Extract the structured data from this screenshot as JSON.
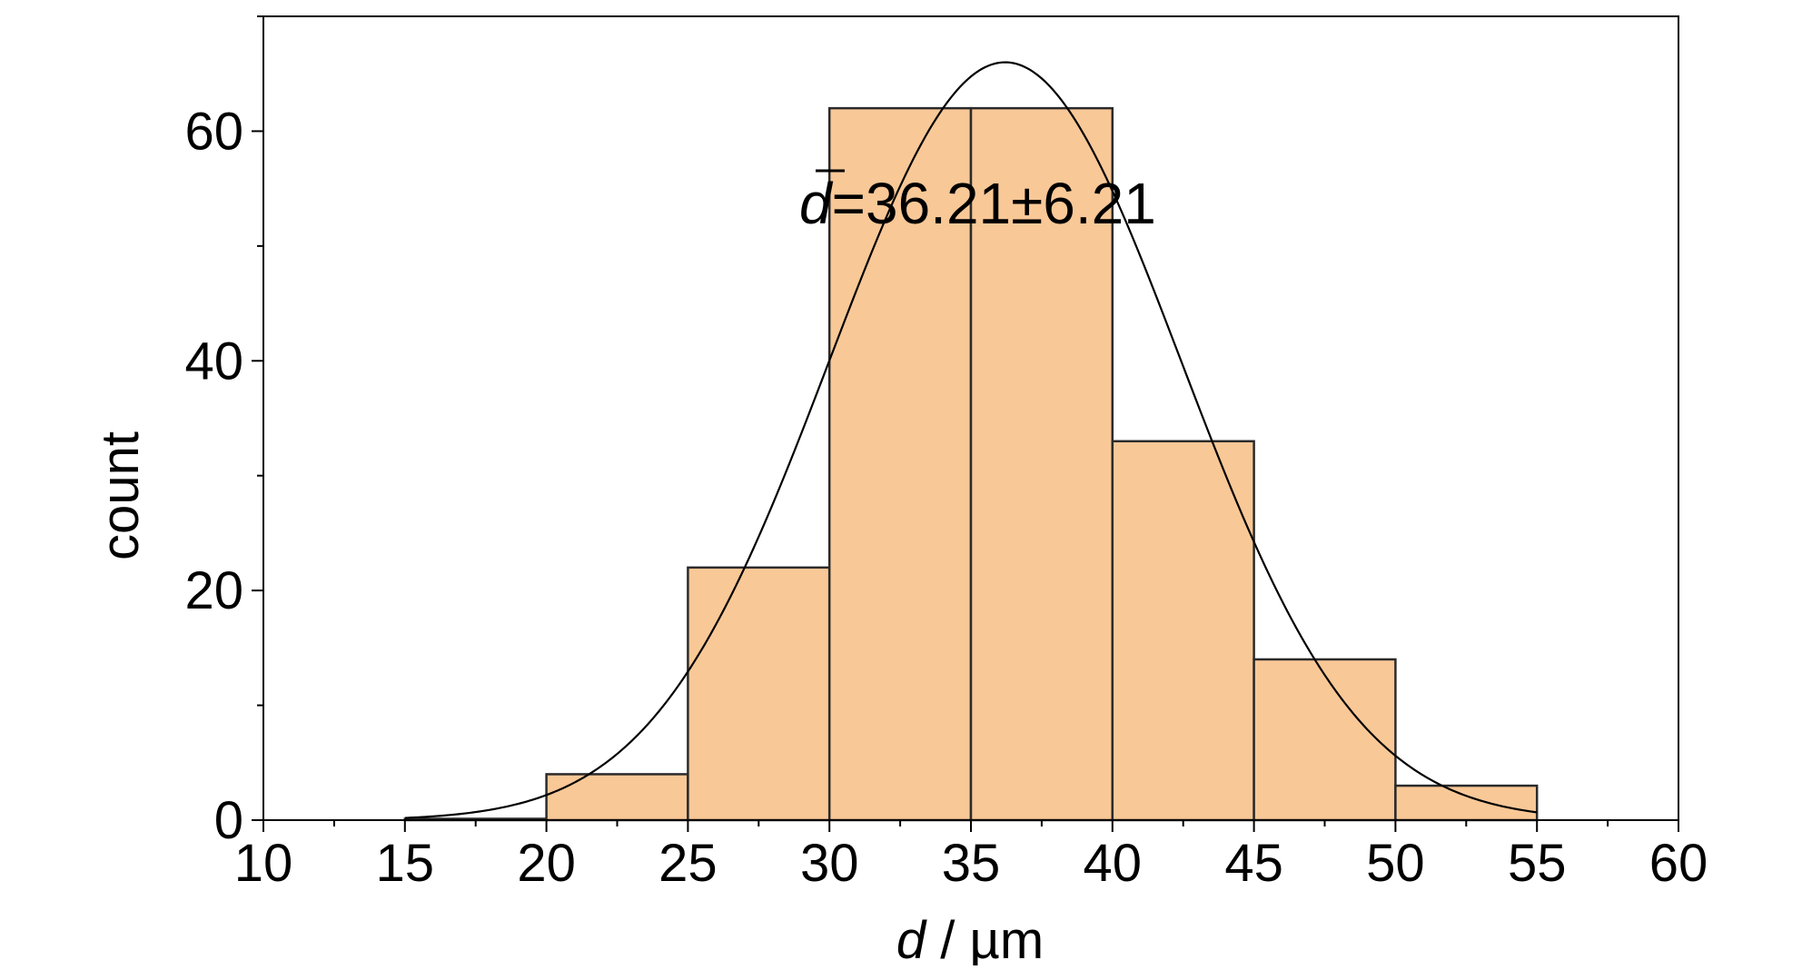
{
  "chart_data": {
    "type": "bar",
    "subtype": "histogram",
    "title": "",
    "xlabel_var": "d",
    "xlabel_unit": " / µm",
    "ylabel": "count",
    "xlim": [
      10,
      60
    ],
    "ylim": [
      0,
      70
    ],
    "x_ticks": [
      10,
      15,
      20,
      25,
      30,
      35,
      40,
      45,
      50,
      55,
      60
    ],
    "y_ticks": [
      0,
      20,
      40,
      60
    ],
    "bins": [
      {
        "start": 15,
        "end": 20,
        "value": 0
      },
      {
        "start": 20,
        "end": 25,
        "value": 4
      },
      {
        "start": 25,
        "end": 30,
        "value": 22
      },
      {
        "start": 30,
        "end": 35,
        "value": 62
      },
      {
        "start": 35,
        "end": 40,
        "value": 62
      },
      {
        "start": 40,
        "end": 45,
        "value": 33
      },
      {
        "start": 45,
        "end": 50,
        "value": 14
      },
      {
        "start": 50,
        "end": 55,
        "value": 3
      }
    ],
    "fit": {
      "type": "normal",
      "mean": 36.21,
      "sd": 6.21,
      "peak": 66
    },
    "annotation": {
      "var": "d",
      "text": "=36.21±6.21"
    },
    "grid": false,
    "legend": "none",
    "colors": {
      "bar_fill": "#f9c897",
      "bar_edge": "#2b2b2b",
      "curve": "#000000"
    }
  }
}
